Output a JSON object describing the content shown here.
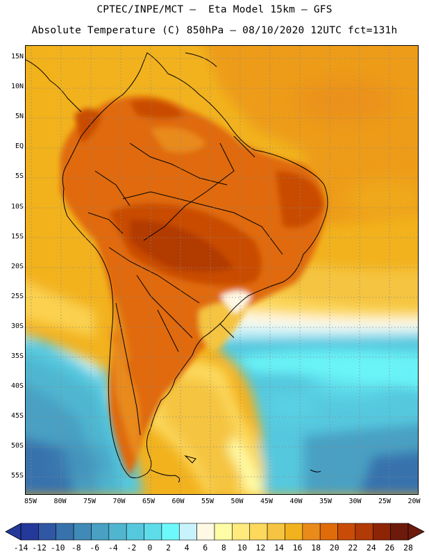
{
  "header": {
    "line1": "CPTEC/INPE/MCT –  Eta Model 15km – GFS",
    "line2": "Absolute Temperature (C) 850hPa – 08/10/2020 12UTC fct=131h"
  },
  "map": {
    "lat_labels": [
      "15N",
      "10N",
      "5N",
      "EQ",
      "5S",
      "10S",
      "15S",
      "20S",
      "25S",
      "30S",
      "35S",
      "40S",
      "45S",
      "50S",
      "55S"
    ],
    "lon_labels": [
      "85W",
      "80W",
      "75W",
      "70W",
      "65W",
      "60W",
      "55W",
      "50W",
      "45W",
      "40W",
      "35W",
      "30W",
      "25W",
      "20W"
    ]
  },
  "colorbar": {
    "labels": [
      "-14",
      "-12",
      "-10",
      "-8",
      "-6",
      "-4",
      "-2",
      "0",
      "2",
      "4",
      "6",
      "8",
      "10",
      "12",
      "14",
      "16",
      "18",
      "20",
      "22",
      "24",
      "26",
      "28"
    ],
    "colors": [
      "#24399a",
      "#2f57a4",
      "#3872ad",
      "#3f8ab7",
      "#48a0c3",
      "#50b6d0",
      "#55c8de",
      "#5fdcea",
      "#6df9fc",
      "#c9f3fc",
      "#fff8e4",
      "#fffca6",
      "#feea7d",
      "#fcd85c",
      "#f5c441",
      "#f2b21e",
      "#e98a1a",
      "#e06b09",
      "#c94c06",
      "#b23a06",
      "#8d2406",
      "#6d1a0d"
    ]
  }
}
